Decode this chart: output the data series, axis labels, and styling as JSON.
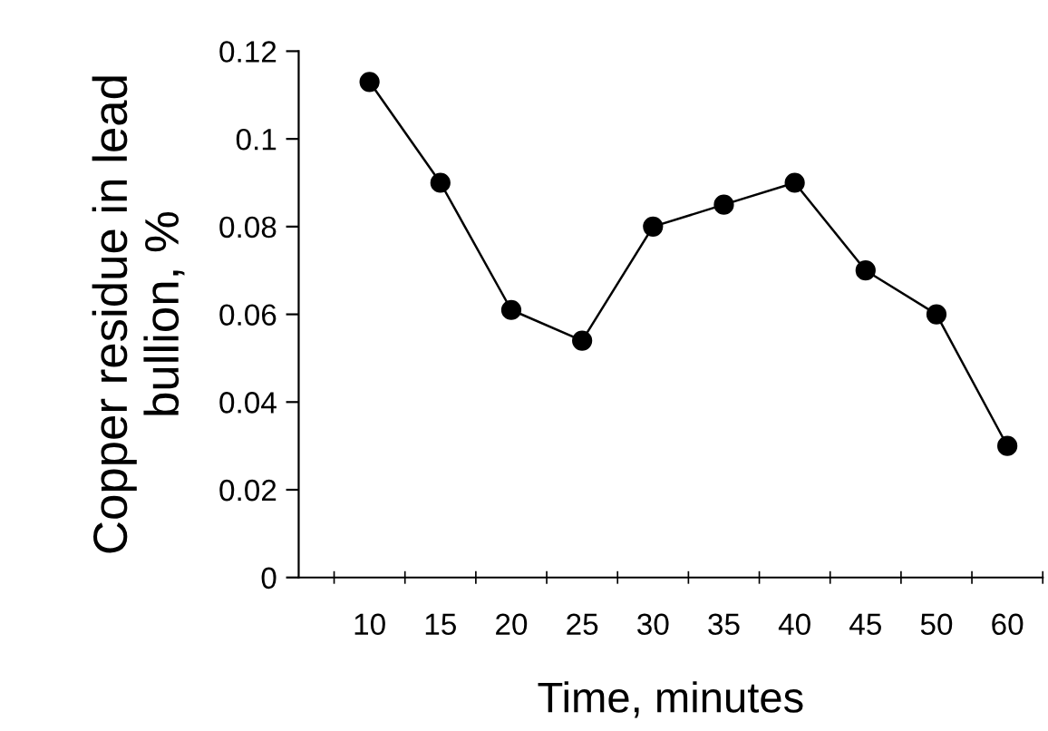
{
  "chart_data": {
    "type": "line",
    "xlabel": "Time, minutes",
    "ylabel": "Copper residue in lead bullion, %",
    "categories": [
      "10",
      "15",
      "20",
      "25",
      "30",
      "35",
      "40",
      "45",
      "50",
      "60"
    ],
    "series": [
      {
        "color": "#000000",
        "values": [
          0.113,
          0.09,
          0.061,
          0.054,
          0.08,
          0.085,
          0.09,
          0.07,
          0.06,
          0.03
        ]
      }
    ],
    "ylim": [
      0,
      0.12
    ],
    "yticks": [
      0,
      0.02,
      0.04,
      0.06,
      0.08,
      0.1,
      0.12
    ],
    "marker": "circle",
    "line_style": "solid",
    "grid": false,
    "legend": false
  }
}
